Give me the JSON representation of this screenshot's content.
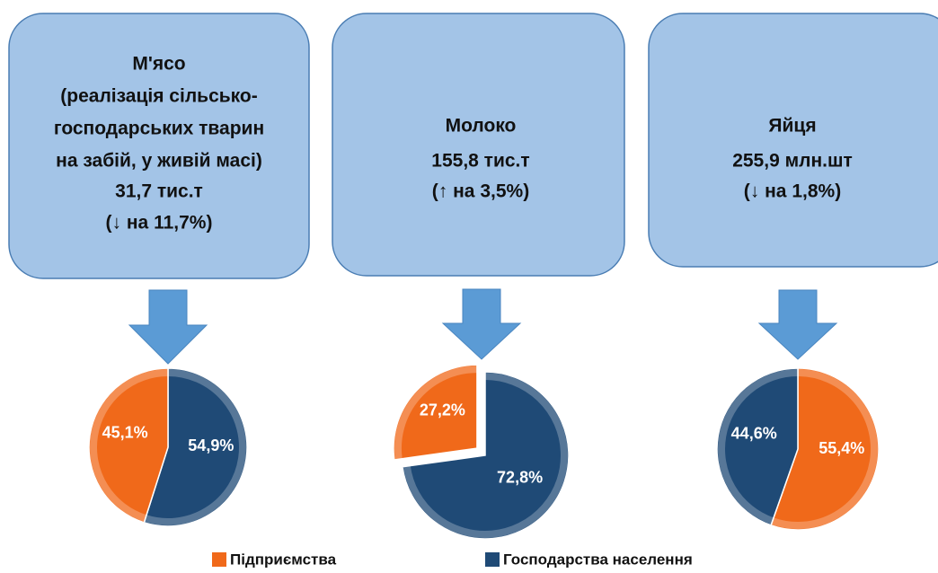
{
  "chart_data": [
    {
      "type": "pie",
      "title_lines": [
        "М'ясо",
        "(реалізація сільсько-",
        "господарських тварин",
        "на забій, у живій масі)",
        "31,7 тис.т",
        "(↓ на 11,7%)"
      ],
      "categories": [
        "Господарства населення",
        "Підприємства"
      ],
      "values": [
        54.9,
        45.1
      ],
      "value_labels": [
        "54,9%",
        "45,1%"
      ],
      "colors": [
        "#1f4a76",
        "#f0691a"
      ],
      "explode": [
        false,
        false
      ]
    },
    {
      "type": "pie",
      "title_lines": [
        "Молоко",
        "155,8 тис.т",
        "(↑ на 3,5%)"
      ],
      "categories": [
        "Господарства населення",
        "Підприємства"
      ],
      "values": [
        72.8,
        27.2
      ],
      "value_labels": [
        "72,8%",
        "27,2%"
      ],
      "colors": [
        "#1f4a76",
        "#f0691a"
      ],
      "explode": [
        false,
        true
      ]
    },
    {
      "type": "pie",
      "title_lines": [
        "Яйця",
        "255,9 млн.шт",
        "(↓ на 1,8%)"
      ],
      "categories": [
        "Підприємства",
        "Господарства населення"
      ],
      "values": [
        55.4,
        44.6
      ],
      "value_labels": [
        "55,4%",
        "44,6%"
      ],
      "colors": [
        "#f0691a",
        "#1f4a76"
      ],
      "explode": [
        false,
        false
      ]
    }
  ],
  "legend": [
    {
      "name": "Підприємства",
      "color": "#f0691a"
    },
    {
      "name": "Господарства населення",
      "color": "#1f4a76"
    }
  ]
}
